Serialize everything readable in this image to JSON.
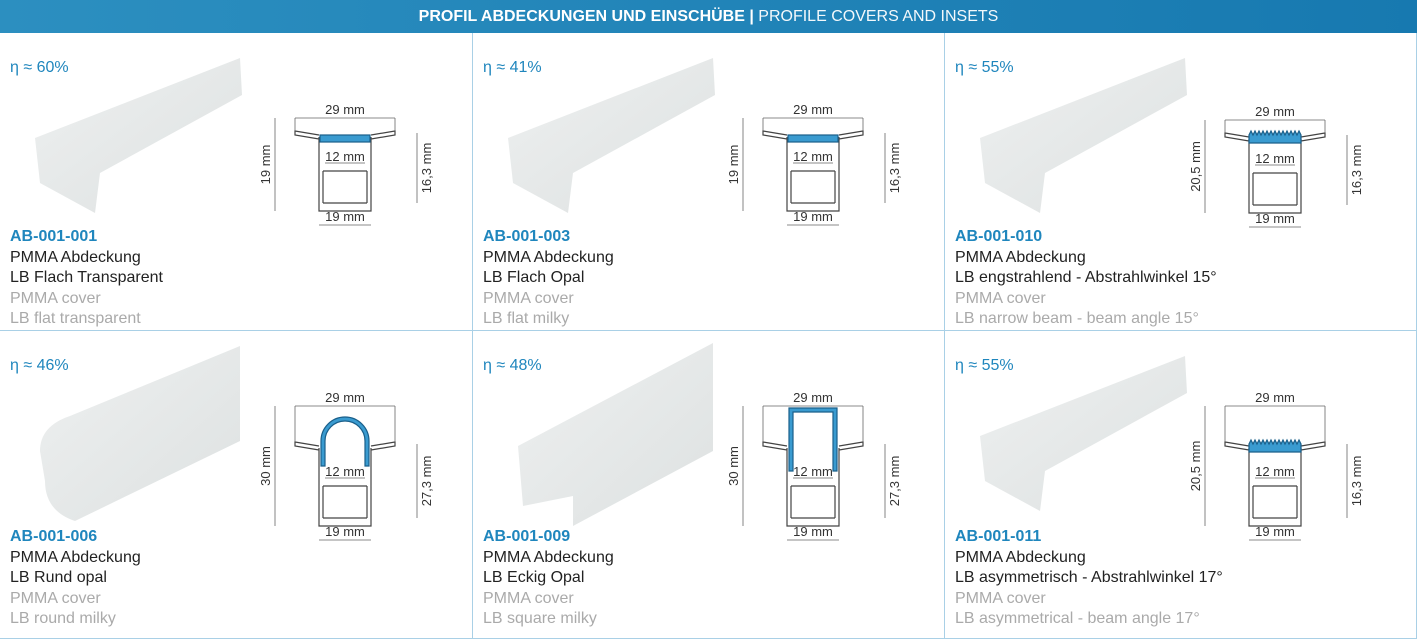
{
  "header": {
    "title_bold": "PROFIL ABDECKUNGEN UND EINSCHÜBE |",
    "title_light": "PROFILE COVERS AND INSETS"
  },
  "products": [
    {
      "efficiency": "η ≈ 60%",
      "code": "AB-001-001",
      "de": [
        "PMMA Abdeckung",
        "LB Flach Transparent"
      ],
      "en": [
        "PMMA cover",
        "LB flat transparent"
      ],
      "dims": {
        "top": "29 mm",
        "inner": "12 mm",
        "bottom": "19 mm",
        "left": "19 mm",
        "right": "16,3 mm"
      }
    },
    {
      "efficiency": "η ≈ 41%",
      "code": "AB-001-003",
      "de": [
        "PMMA Abdeckung",
        "LB Flach Opal"
      ],
      "en": [
        "PMMA cover",
        "LB flat milky"
      ],
      "dims": {
        "top": "29 mm",
        "inner": "12 mm",
        "bottom": "19 mm",
        "left": "19 mm",
        "right": "16,3 mm"
      }
    },
    {
      "efficiency": "η ≈ 55%",
      "code": "AB-001-010",
      "de": [
        "PMMA Abdeckung",
        "LB engstrahlend - Abstrahlwinkel 15°"
      ],
      "en": [
        "PMMA cover",
        "LB narrow beam - beam angle 15°"
      ],
      "dims": {
        "top": "29 mm",
        "inner": "12 mm",
        "bottom": "19 mm",
        "left": "20,5 mm",
        "right": "16,3 mm"
      }
    },
    {
      "efficiency": "η ≈ 46%",
      "code": "AB-001-006",
      "de": [
        "PMMA Abdeckung",
        "LB Rund opal"
      ],
      "en": [
        "PMMA cover",
        "LB round milky"
      ],
      "dims": {
        "top": "29 mm",
        "inner": "12 mm",
        "bottom": "19 mm",
        "left": "30 mm",
        "right": "27,3 mm"
      }
    },
    {
      "efficiency": "η ≈ 48%",
      "code": "AB-001-009",
      "de": [
        "PMMA Abdeckung",
        "LB Eckig Opal"
      ],
      "en": [
        "PMMA cover",
        "LB square milky"
      ],
      "dims": {
        "top": "29 mm",
        "inner": "12 mm",
        "bottom": "19 mm",
        "left": "30 mm",
        "right": "27,3 mm"
      }
    },
    {
      "efficiency": "η ≈ 55%",
      "code": "AB-001-011",
      "de": [
        "PMMA Abdeckung",
        "LB asymmetrisch - Abstrahlwinkel 17°"
      ],
      "en": [
        "PMMA cover",
        "LB asymmetrical - beam angle 17°"
      ],
      "dims": {
        "top": "29 mm",
        "inner": "12 mm",
        "bottom": "19 mm",
        "left": "20,5 mm",
        "right": "16,3 mm"
      }
    }
  ]
}
